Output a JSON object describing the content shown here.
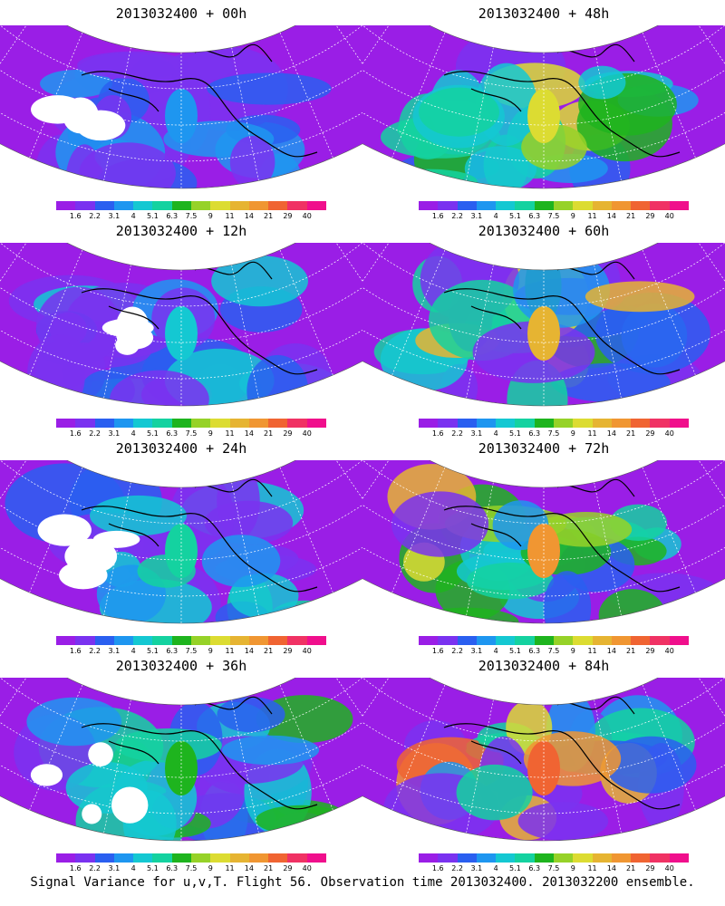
{
  "colorbar": {
    "colors": [
      "#9a1ee6",
      "#7a32f0",
      "#2a5ff0",
      "#1e96f0",
      "#14c8d2",
      "#14d2a0",
      "#1eb41e",
      "#96d228",
      "#dcdc32",
      "#e6b432",
      "#f09632",
      "#f06432",
      "#f03264",
      "#f00f8c"
    ],
    "labels": [
      "1.6",
      "2.2",
      "3.1",
      "4",
      "5.1",
      "6.3",
      "7.5",
      "9",
      "11",
      "14",
      "21",
      "29",
      "40"
    ]
  },
  "panels": [
    {
      "title": "2013032400 + 00h",
      "lead": "00h",
      "intensity": 0.15
    },
    {
      "title": "2013032400 + 48h",
      "lead": "48h",
      "intensity": 0.6
    },
    {
      "title": "2013032400 + 12h",
      "lead": "12h",
      "intensity": 0.25
    },
    {
      "title": "2013032400 + 60h",
      "lead": "60h",
      "intensity": 0.7
    },
    {
      "title": "2013032400 + 24h",
      "lead": "24h",
      "intensity": 0.35
    },
    {
      "title": "2013032400 + 72h",
      "lead": "72h",
      "intensity": 0.78
    },
    {
      "title": "2013032400 + 36h",
      "lead": "36h",
      "intensity": 0.45
    },
    {
      "title": "2013032400 + 84h",
      "lead": "84h",
      "intensity": 0.85
    }
  ],
  "footer": "Signal Variance for u,v,T. Flight 56. Observation time 2013032400. 2013032200 ensemble."
}
